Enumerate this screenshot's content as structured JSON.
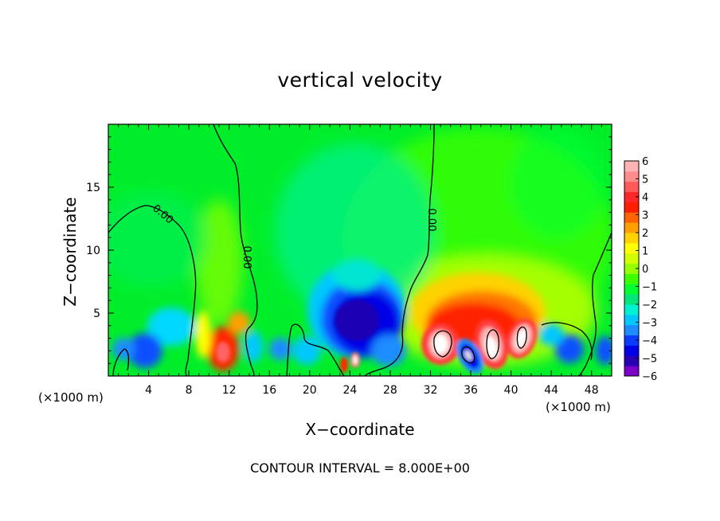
{
  "chart_data": {
    "type": "heatmap",
    "title": "vertical velocity",
    "xlabel": "X−coordinate",
    "ylabel": "Z−coordinate",
    "x_unit_left": "(×1000 m)",
    "x_unit_right": "(×1000 m)",
    "footer": "CONTOUR INTERVAL = 8.000E+00",
    "xlim": [
      0,
      50
    ],
    "ylim": [
      0,
      20
    ],
    "x_ticks": [
      4,
      8,
      12,
      16,
      20,
      24,
      28,
      32,
      36,
      40,
      44,
      48
    ],
    "y_ticks": [
      5,
      10,
      15
    ],
    "contour_labels": [
      "0.00",
      "0.00",
      "0.00"
    ],
    "colorbar": {
      "ticks": [
        "6",
        "5",
        "4",
        "3",
        "2",
        "1",
        "0",
        "−1",
        "−2",
        "−3",
        "−4",
        "−5",
        "−6"
      ],
      "range": [
        -6,
        6
      ],
      "colors": [
        "#7b00c8",
        "#2a00b4",
        "#0000e6",
        "#0a3cff",
        "#1e8cff",
        "#00c8ff",
        "#00f0d2",
        "#00e678",
        "#00ff30",
        "#3cff00",
        "#96ff00",
        "#d2ff00",
        "#ffff00",
        "#ffd200",
        "#ffa000",
        "#ff6400",
        "#ff1e00",
        "#ff2828",
        "#ff5a5a",
        "#ff8c8c",
        "#ffb4b4"
      ]
    },
    "cells": [
      {
        "x": 1.5,
        "z": 2.0,
        "w": -3
      },
      {
        "x": 3.5,
        "z": 1.5,
        "w": -4
      },
      {
        "x": 6.0,
        "z": 3.5,
        "w": -2
      },
      {
        "x": 7.5,
        "z": 4.0,
        "w": -2.5
      },
      {
        "x": 10.5,
        "z": 2.0,
        "w": 5
      },
      {
        "x": 12.0,
        "z": 3.0,
        "w": 3
      },
      {
        "x": 15.0,
        "z": 2.0,
        "w": -3
      },
      {
        "x": 17.0,
        "z": 1.8,
        "w": -2
      },
      {
        "x": 19.5,
        "z": 2.5,
        "w": -2
      },
      {
        "x": 25.0,
        "z": 4.5,
        "w": -5
      },
      {
        "x": 23.5,
        "z": 3.0,
        "w": -4
      },
      {
        "x": 27.0,
        "z": 2.5,
        "w": -3.5
      },
      {
        "x": 24.0,
        "z": 9.0,
        "w": -1.5
      },
      {
        "x": 24.0,
        "z": 1.2,
        "w": 6
      },
      {
        "x": 22.5,
        "z": 1.0,
        "w": 5
      },
      {
        "x": 33.0,
        "z": 2.8,
        "w": 6
      },
      {
        "x": 38.5,
        "z": 2.5,
        "w": 6
      },
      {
        "x": 41.0,
        "z": 3.0,
        "w": 6
      },
      {
        "x": 36.0,
        "z": 2.0,
        "w": -5
      },
      {
        "x": 44.5,
        "z": 2.0,
        "w": -3
      },
      {
        "x": 49.5,
        "z": 1.5,
        "w": -3
      }
    ]
  }
}
